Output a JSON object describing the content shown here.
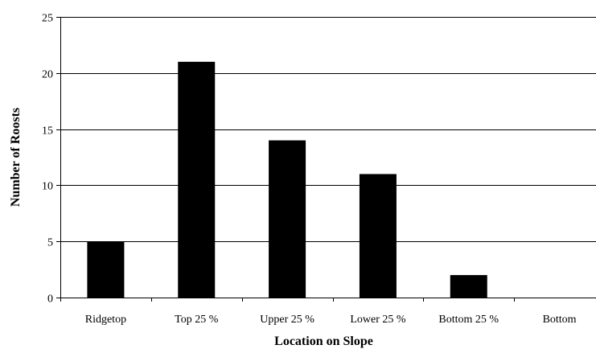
{
  "chart_data": {
    "type": "bar",
    "title": "",
    "xlabel": "Location on Slope",
    "ylabel": "Number of Roosts",
    "categories": [
      "Ridgetop",
      "Top 25 %",
      "Upper 25 %",
      "Lower 25 %",
      "Bottom 25 %",
      "Bottom"
    ],
    "values": [
      5,
      21,
      14,
      11,
      2,
      0
    ],
    "ylim": [
      0,
      25
    ],
    "yticks": [
      0,
      5,
      10,
      15,
      20,
      25
    ],
    "grid": "horizontal",
    "legend": "none",
    "bar_color": "#000000",
    "grid_color": "#000000"
  }
}
